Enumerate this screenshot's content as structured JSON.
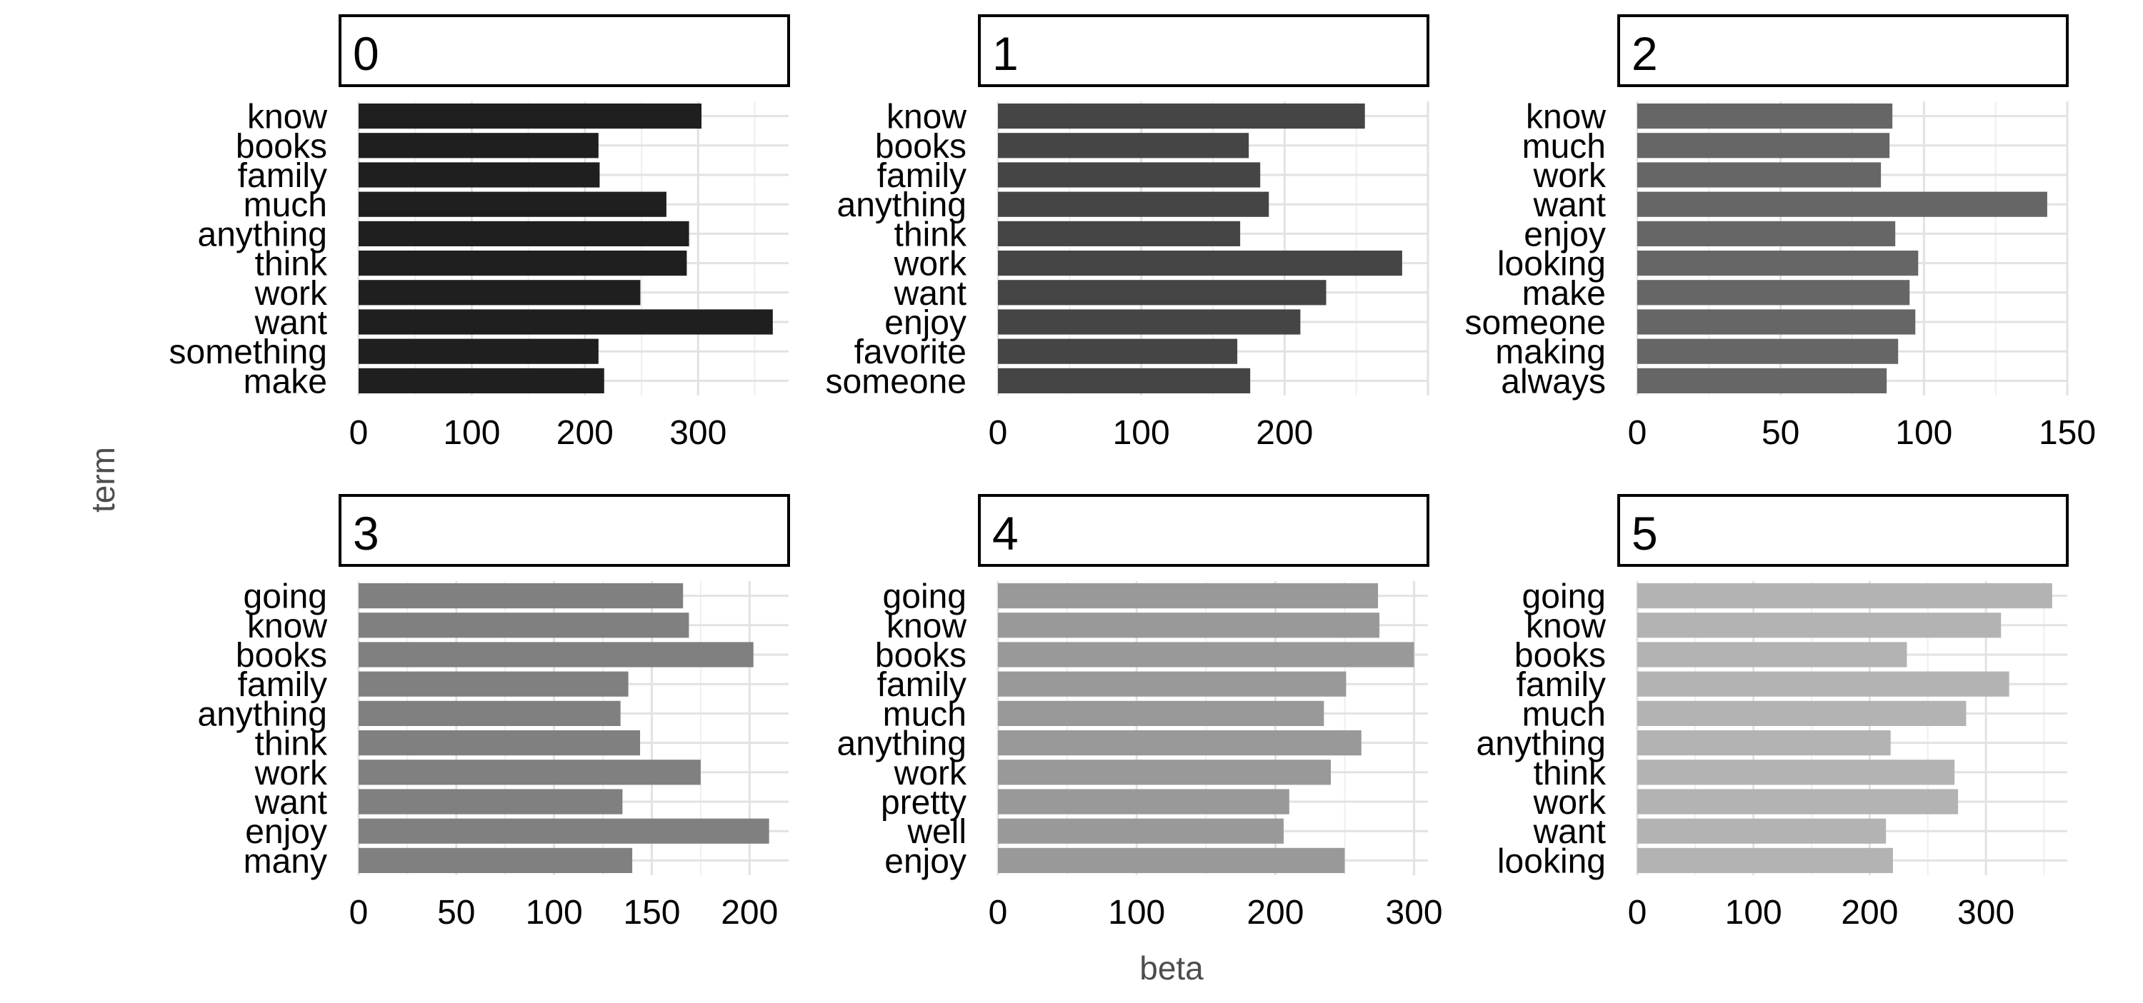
{
  "chart_data": {
    "type": "bar",
    "orientation": "horizontal",
    "layout": "facet-grid-2x3",
    "xlabel": "beta",
    "ylabel": "term",
    "grid": true,
    "legend": "none",
    "panels": [
      {
        "label": "0",
        "color": "#1f1f1f",
        "xlim": [
          0,
          380
        ],
        "xticks": [
          0,
          100,
          200,
          300
        ],
        "tick_labels": [
          "0",
          "100",
          "200",
          "300"
        ],
        "categories": [
          "know",
          "books",
          "family",
          "much",
          "anything",
          "think",
          "work",
          "want",
          "something",
          "make"
        ],
        "values": [
          303,
          212,
          213,
          272,
          292,
          290,
          249,
          366,
          212,
          217
        ]
      },
      {
        "label": "1",
        "color": "#454545",
        "xlim": [
          0,
          300
        ],
        "xticks": [
          0,
          100,
          200
        ],
        "tick_labels": [
          "0",
          "100",
          "200"
        ],
        "categories": [
          "know",
          "books",
          "family",
          "anything",
          "think",
          "work",
          "want",
          "enjoy",
          "favorite",
          "someone"
        ],
        "values": [
          256,
          175,
          183,
          189,
          169,
          282,
          229,
          211,
          167,
          176
        ]
      },
      {
        "label": "2",
        "color": "#666666",
        "xlim": [
          0,
          150
        ],
        "xticks": [
          0,
          50,
          100,
          150
        ],
        "tick_labels": [
          "0",
          "50",
          "100",
          "150"
        ],
        "categories": [
          "know",
          "much",
          "work",
          "want",
          "enjoy",
          "looking",
          "make",
          "someone",
          "making",
          "always"
        ],
        "values": [
          89,
          88,
          85,
          143,
          90,
          98,
          95,
          97,
          91,
          87
        ]
      },
      {
        "label": "3",
        "color": "#808080",
        "xlim": [
          0,
          220
        ],
        "xticks": [
          0,
          50,
          100,
          150,
          200
        ],
        "tick_labels": [
          "0",
          "50",
          "100",
          "150",
          "200"
        ],
        "categories": [
          "going",
          "know",
          "books",
          "family",
          "anything",
          "think",
          "work",
          "want",
          "enjoy",
          "many"
        ],
        "values": [
          166,
          169,
          202,
          138,
          134,
          144,
          175,
          135,
          210,
          140
        ]
      },
      {
        "label": "4",
        "color": "#999999",
        "xlim": [
          0,
          310
        ],
        "xticks": [
          0,
          100,
          200,
          300
        ],
        "tick_labels": [
          "0",
          "100",
          "200",
          "300"
        ],
        "categories": [
          "going",
          "know",
          "books",
          "family",
          "much",
          "anything",
          "work",
          "pretty",
          "well",
          "enjoy"
        ],
        "values": [
          274,
          275,
          300,
          251,
          235,
          262,
          240,
          210,
          206,
          250
        ]
      },
      {
        "label": "5",
        "color": "#b3b3b3",
        "xlim": [
          0,
          370
        ],
        "xticks": [
          0,
          100,
          200,
          300
        ],
        "tick_labels": [
          "0",
          "100",
          "200",
          "300"
        ],
        "categories": [
          "going",
          "know",
          "books",
          "family",
          "much",
          "anything",
          "think",
          "work",
          "want",
          "looking"
        ],
        "values": [
          357,
          313,
          232,
          320,
          283,
          218,
          273,
          276,
          214,
          220
        ]
      }
    ]
  }
}
